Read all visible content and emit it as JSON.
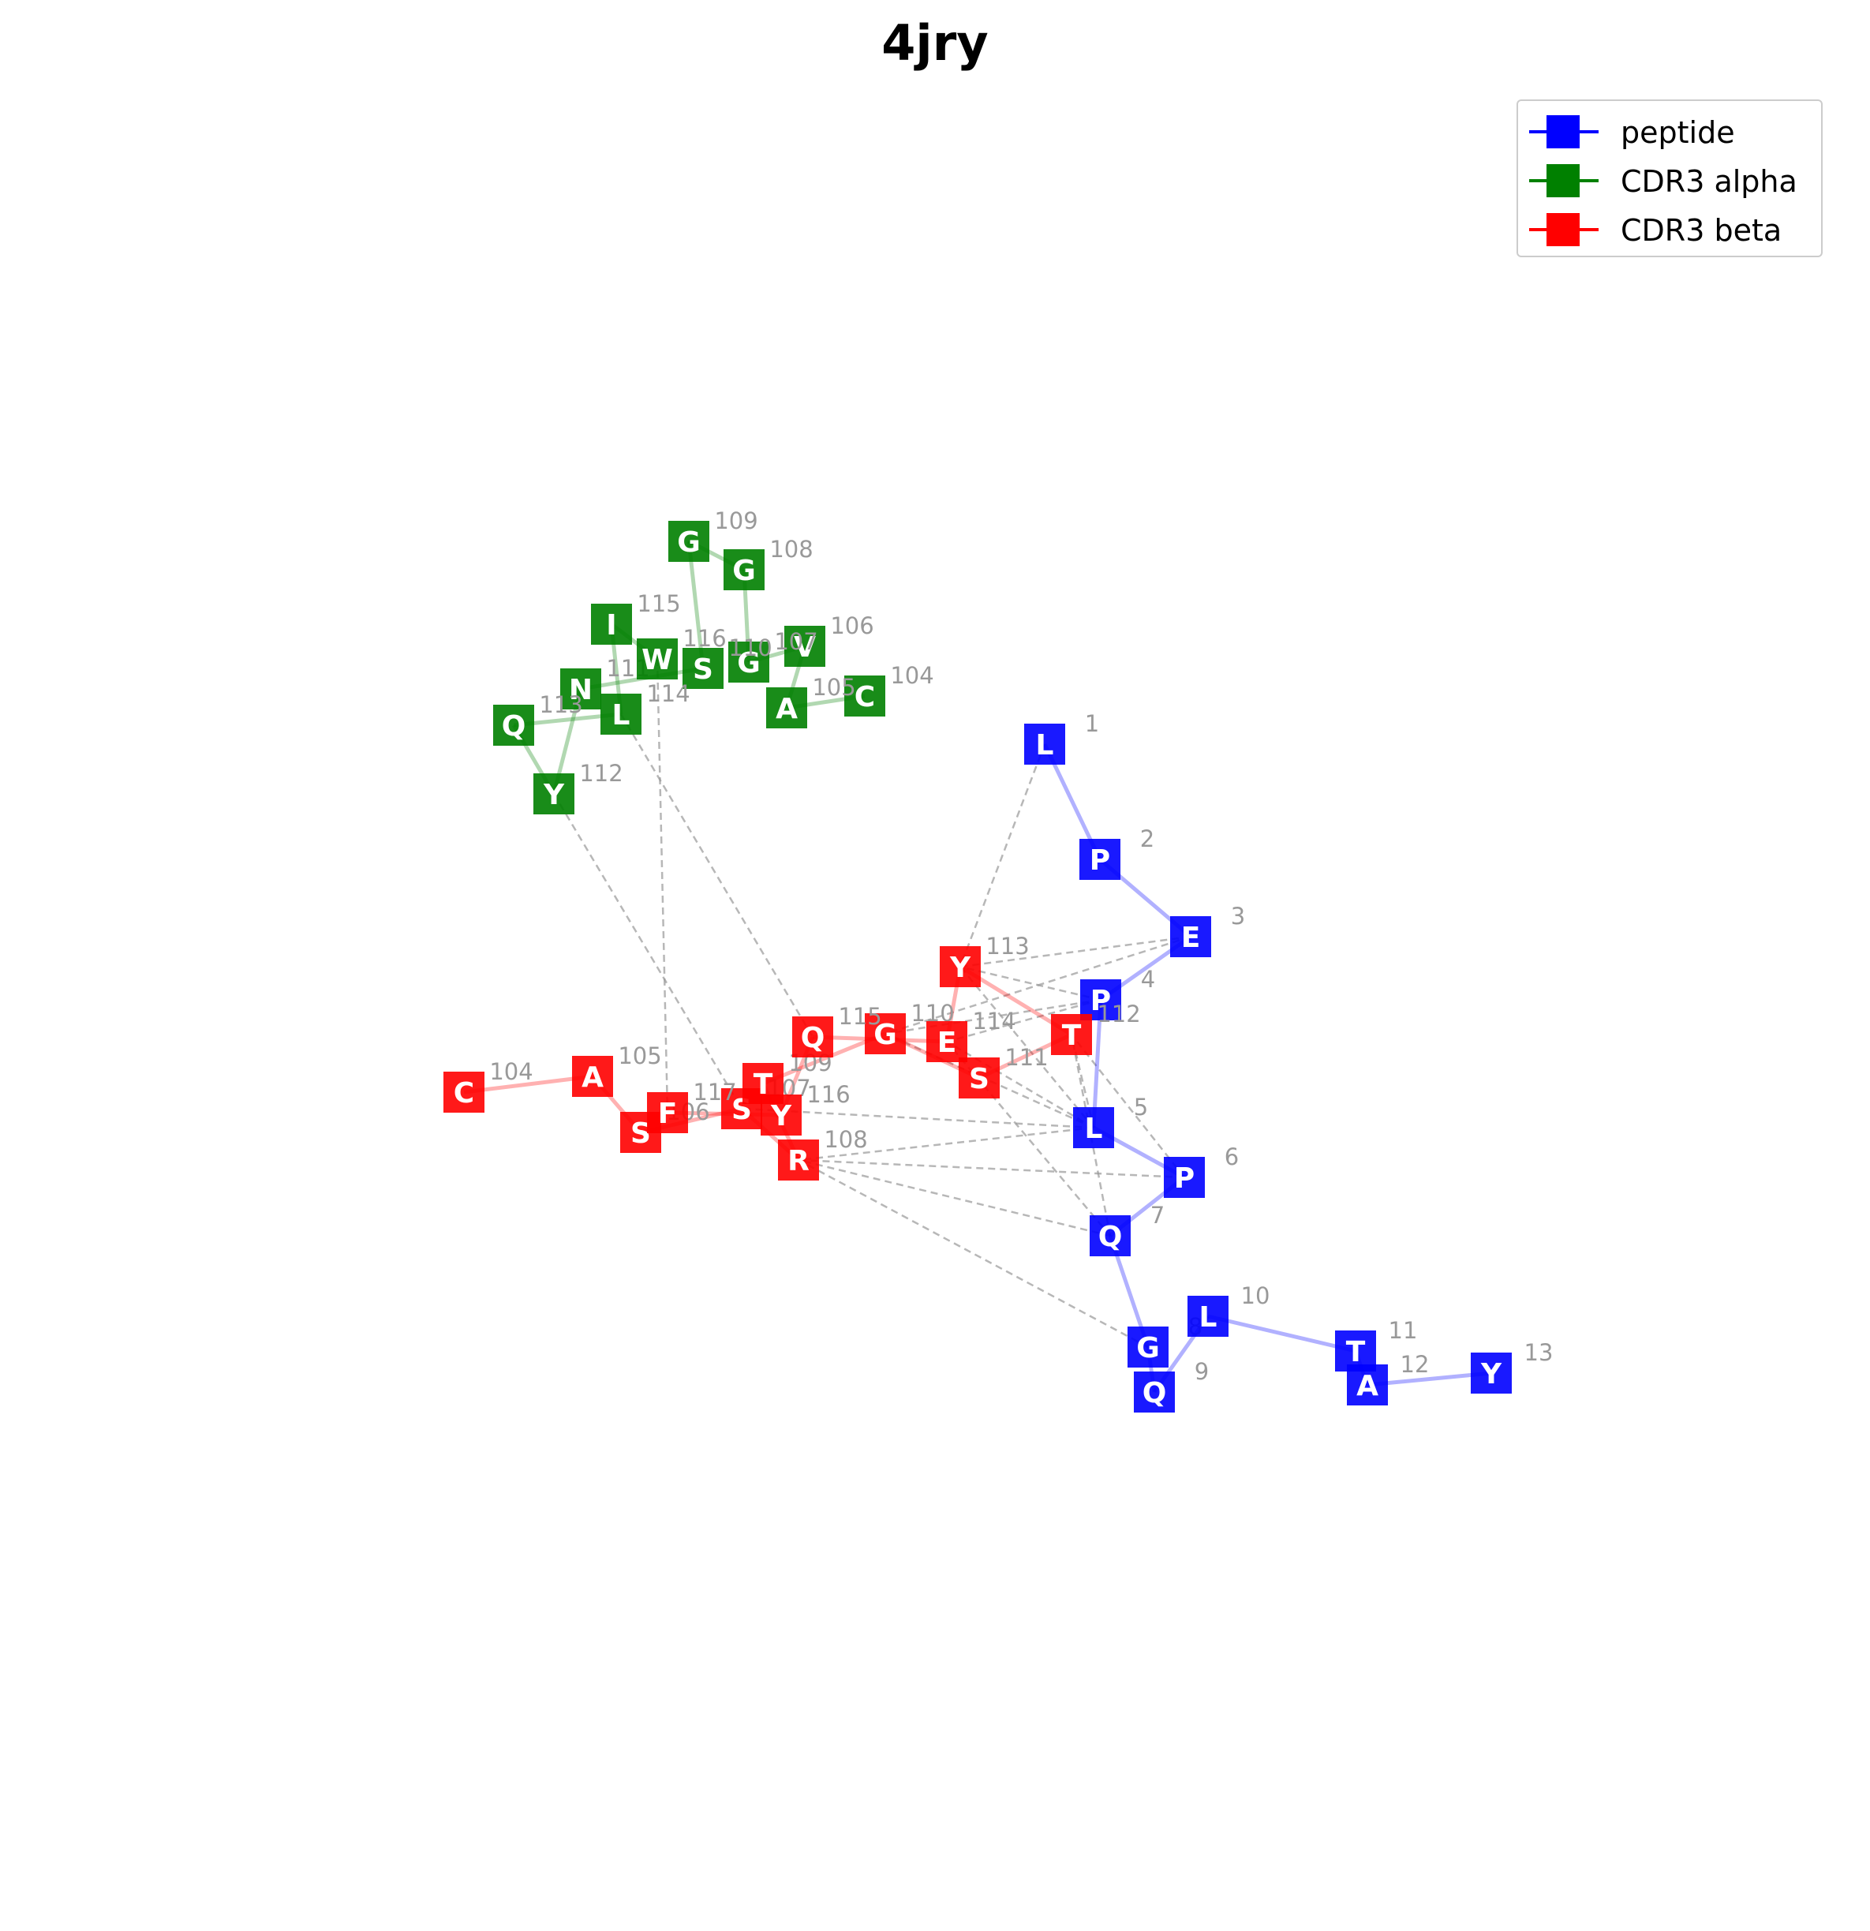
{
  "title": "4jry",
  "colors": {
    "peptide": "#0000ff",
    "alpha": "#008000",
    "beta": "#ff0000",
    "contact": "#999999",
    "index": "#999999"
  },
  "legend": [
    {
      "label": "peptide",
      "color": "#0000ff"
    },
    {
      "label": "CDR3 alpha",
      "color": "#008000"
    },
    {
      "label": "CDR3 beta",
      "color": "#ff0000"
    }
  ],
  "chains": {
    "peptide": [
      {
        "aa": "L",
        "num": "1"
      },
      {
        "aa": "P",
        "num": "2"
      },
      {
        "aa": "E",
        "num": "3"
      },
      {
        "aa": "P",
        "num": "4"
      },
      {
        "aa": "L",
        "num": "5"
      },
      {
        "aa": "P",
        "num": "6"
      },
      {
        "aa": "Q",
        "num": "7"
      },
      {
        "aa": "G",
        "num": "8"
      },
      {
        "aa": "Q",
        "num": "9"
      },
      {
        "aa": "L",
        "num": "10"
      },
      {
        "aa": "T",
        "num": "11"
      },
      {
        "aa": "A",
        "num": "12"
      },
      {
        "aa": "Y",
        "num": "13"
      }
    ],
    "alpha": [
      {
        "aa": "C",
        "num": "104"
      },
      {
        "aa": "A",
        "num": "105"
      },
      {
        "aa": "V",
        "num": "106"
      },
      {
        "aa": "G",
        "num": "107"
      },
      {
        "aa": "G",
        "num": "108"
      },
      {
        "aa": "G",
        "num": "109"
      },
      {
        "aa": "S",
        "num": "110"
      },
      {
        "aa": "N",
        "num": "111"
      },
      {
        "aa": "Y",
        "num": "112"
      },
      {
        "aa": "Q",
        "num": "113"
      },
      {
        "aa": "L",
        "num": "114"
      },
      {
        "aa": "I",
        "num": "115"
      },
      {
        "aa": "W",
        "num": "116"
      }
    ],
    "beta": [
      {
        "aa": "C",
        "num": "104"
      },
      {
        "aa": "A",
        "num": "105"
      },
      {
        "aa": "S",
        "num": "106"
      },
      {
        "aa": "S",
        "num": "107"
      },
      {
        "aa": "R",
        "num": "108"
      },
      {
        "aa": "T",
        "num": "109"
      },
      {
        "aa": "G",
        "num": "110"
      },
      {
        "aa": "S",
        "num": "111"
      },
      {
        "aa": "T",
        "num": "112"
      },
      {
        "aa": "Y",
        "num": "113"
      },
      {
        "aa": "E",
        "num": "114"
      },
      {
        "aa": "Q",
        "num": "115"
      },
      {
        "aa": "Y",
        "num": "116"
      },
      {
        "aa": "F",
        "num": "117"
      }
    ]
  },
  "contacts": [
    [
      "peptide",
      0,
      "beta",
      9
    ],
    [
      "peptide",
      2,
      "beta",
      9
    ],
    [
      "peptide",
      2,
      "beta",
      6
    ],
    [
      "peptide",
      3,
      "beta",
      9
    ],
    [
      "peptide",
      3,
      "beta",
      6
    ],
    [
      "peptide",
      3,
      "beta",
      10
    ],
    [
      "peptide",
      4,
      "beta",
      3
    ],
    [
      "peptide",
      4,
      "beta",
      4
    ],
    [
      "peptide",
      4,
      "beta",
      6
    ],
    [
      "peptide",
      4,
      "beta",
      8
    ],
    [
      "peptide",
      4,
      "beta",
      10
    ],
    [
      "peptide",
      5,
      "beta",
      4
    ],
    [
      "peptide",
      5,
      "beta",
      8
    ],
    [
      "peptide",
      6,
      "beta",
      4
    ],
    [
      "peptide",
      6,
      "beta",
      10
    ],
    [
      "peptide",
      6,
      "beta",
      8
    ],
    [
      "peptide",
      7,
      "beta",
      4
    ],
    [
      "peptide",
      4,
      "beta",
      9
    ],
    [
      "alpha",
      8,
      "beta",
      3
    ],
    [
      "alpha",
      10,
      "beta",
      11
    ],
    [
      "alpha",
      12,
      "beta",
      13
    ]
  ]
}
